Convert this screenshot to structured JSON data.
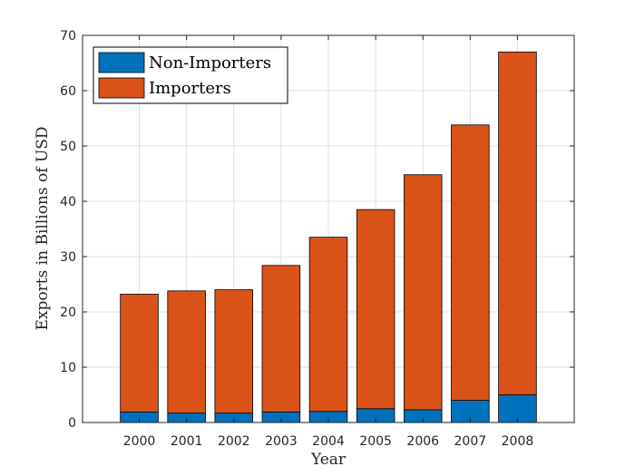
{
  "chart_data": {
    "type": "bar",
    "stacked": true,
    "title": "",
    "xlabel": "Year",
    "ylabel": "Exports in Billions of USD",
    "categories": [
      "2000",
      "2001",
      "2002",
      "2003",
      "2004",
      "2005",
      "2006",
      "2007",
      "2008"
    ],
    "ylim": [
      0,
      70
    ],
    "yticks": [
      "0",
      "10",
      "20",
      "30",
      "40",
      "50",
      "60",
      "70"
    ],
    "grid": true,
    "legend_position": "top-left",
    "series": [
      {
        "name": "Non-Importers",
        "color": "#0072BD",
        "values": [
          1.9,
          1.7,
          1.7,
          1.9,
          2.0,
          2.5,
          2.3,
          4.0,
          5.0
        ]
      },
      {
        "name": "Importers",
        "color": "#D95319",
        "values": [
          21.3,
          22.1,
          22.3,
          26.5,
          31.5,
          36.0,
          42.5,
          49.8,
          62.0
        ]
      }
    ]
  }
}
